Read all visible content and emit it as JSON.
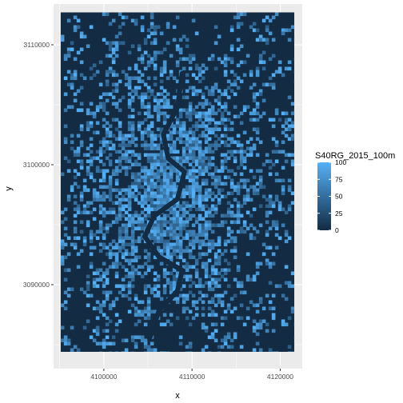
{
  "chart_data": {
    "type": "heatmap",
    "title": "",
    "xlabel": "x",
    "ylabel": "y",
    "x_ticks": [
      {
        "value": 4100000,
        "label": "4100000"
      },
      {
        "value": 4110000,
        "label": "4110000"
      },
      {
        "value": 4120000,
        "label": "4120000"
      }
    ],
    "y_ticks": [
      {
        "value": 3090000,
        "label": "3090000"
      },
      {
        "value": 3100000,
        "label": "3100000"
      },
      {
        "value": 3110000,
        "label": "3110000"
      }
    ],
    "xlim": [
      4094300,
      4122500
    ],
    "ylim": [
      3083000,
      3113400
    ],
    "raster_extent": {
      "x": [
        4095100,
        4121600
      ],
      "y": [
        3084400,
        3112700
      ]
    },
    "legend": {
      "title": "S40RG_2015_100m",
      "placement": "right",
      "range": [
        0,
        100
      ],
      "ticks": [
        {
          "value": 0,
          "label": "0"
        },
        {
          "value": 25,
          "label": "25"
        },
        {
          "value": 50,
          "label": "50"
        },
        {
          "value": 75,
          "label": "75"
        },
        {
          "value": 100,
          "label": "100"
        }
      ]
    },
    "colors": {
      "low": "#132B43",
      "high": "#56B1F7",
      "panel_background": "#EBEBEB",
      "gridline": "#FFFFFF"
    },
    "grid": true
  }
}
